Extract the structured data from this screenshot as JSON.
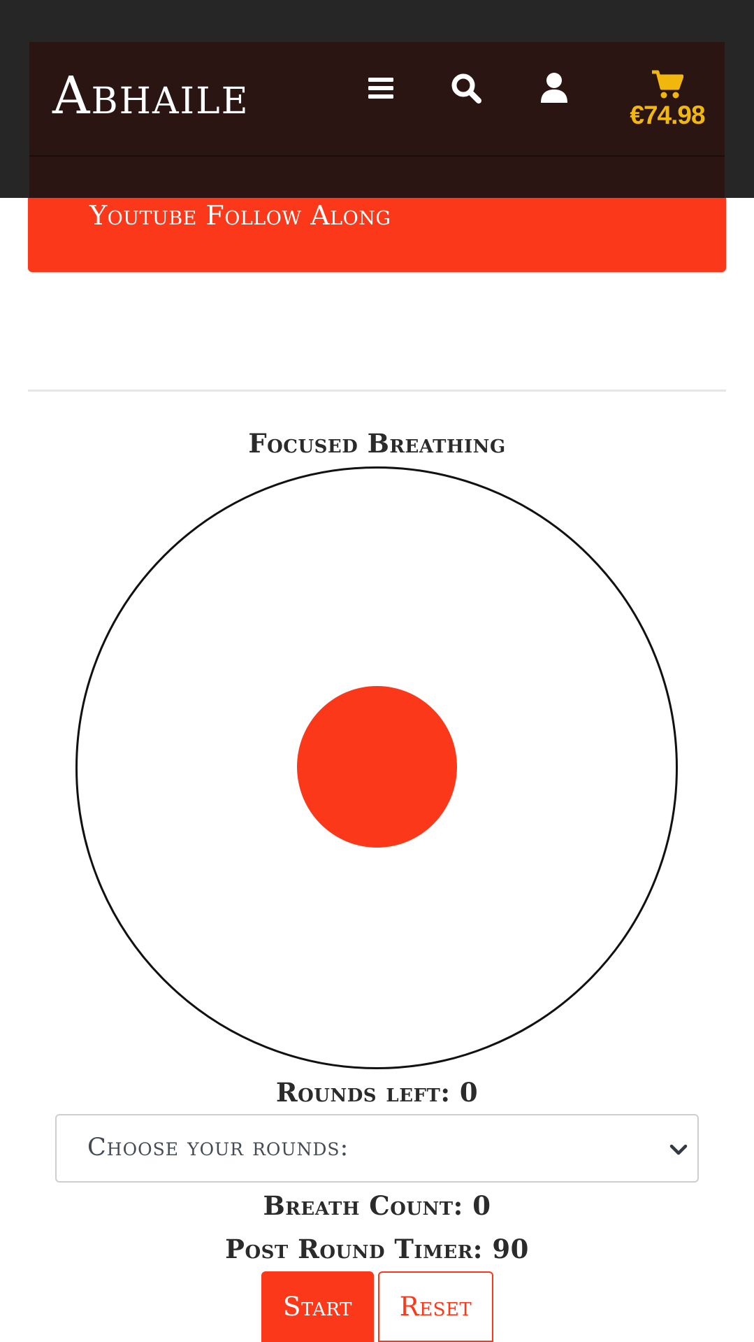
{
  "header": {
    "brand": "Abhaile",
    "menu_icon": "menu-icon",
    "search_icon": "search-icon",
    "account_icon": "user-icon",
    "cart_icon": "cart-icon",
    "cart_total": "€74.98",
    "cart_color": "#f2b70c",
    "background": "#2a1513"
  },
  "banner": {
    "link_label": "Youtube Follow Along",
    "color": "#fb3819"
  },
  "breathing": {
    "title": "Focused Breathing",
    "rounds_left": "Rounds left: 0",
    "rounds_select": {
      "selected": "Choose your rounds:"
    },
    "breath_count": "Breath Count: 0",
    "post_round_timer": "Post Round Timer: 90",
    "start_label": "Start",
    "reset_label": "Reset",
    "accent_color": "#fb3819"
  }
}
